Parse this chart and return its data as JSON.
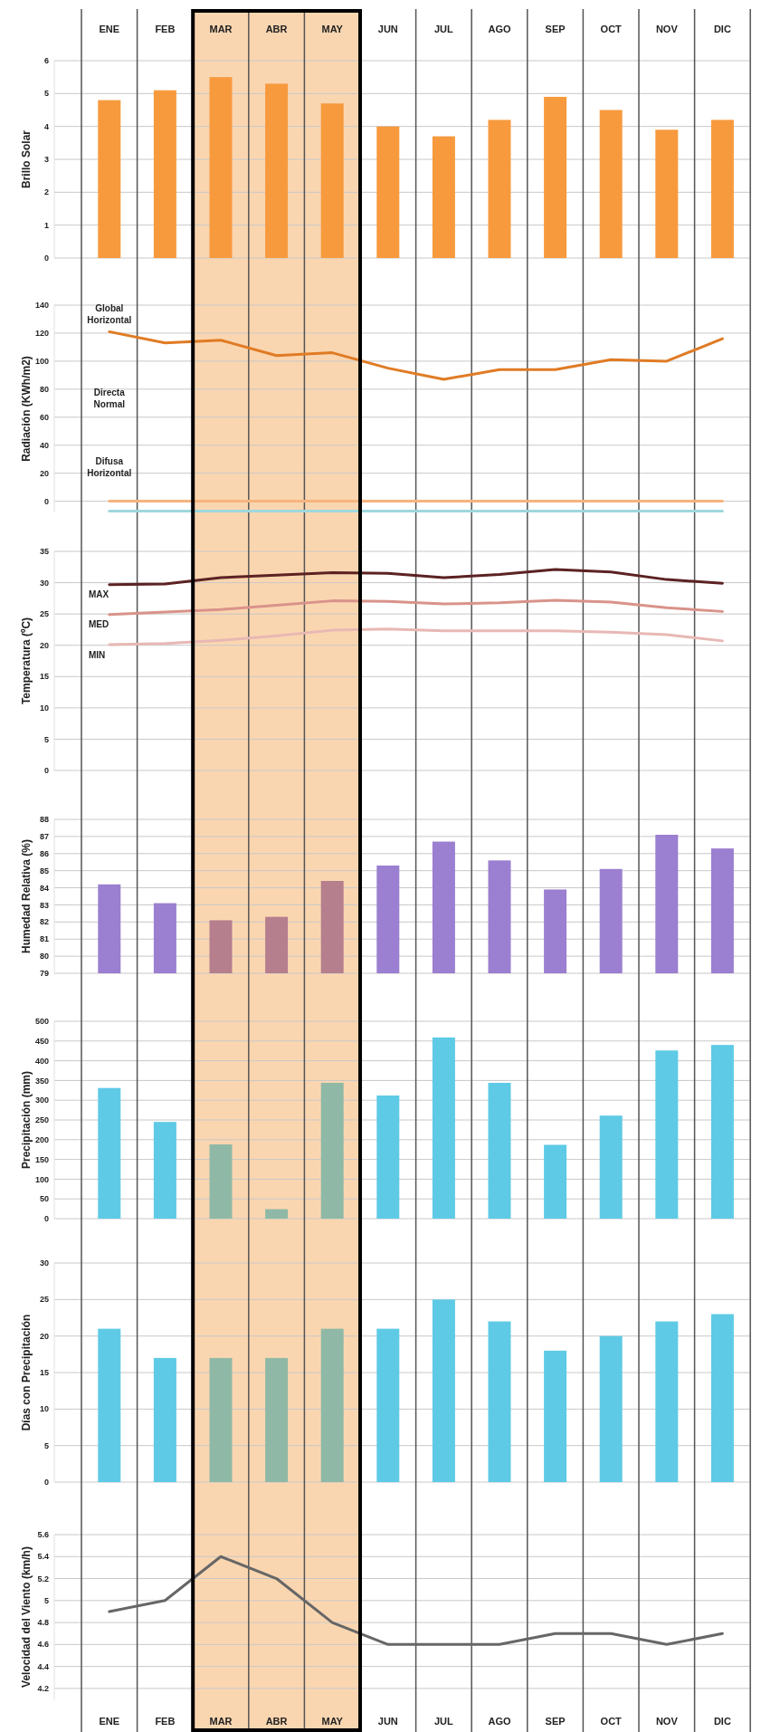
{
  "chart_data": [
    {
      "type": "bar",
      "ylabel": "Brillo Solar",
      "categories": [
        "ENE",
        "FEB",
        "MAR",
        "ABR",
        "MAY",
        "JUN",
        "JUL",
        "AGO",
        "SEP",
        "OCT",
        "NOV",
        "DIC"
      ],
      "values": [
        4.8,
        5.1,
        5.5,
        5.3,
        4.7,
        4.0,
        3.7,
        4.2,
        4.9,
        4.5,
        3.9,
        4.2
      ],
      "color": "#f79a3e",
      "ylim": [
        0,
        6
      ],
      "yticks": [
        0,
        1,
        2,
        3,
        4,
        5,
        6
      ],
      "grid": true,
      "bands": [
        {
          "axis": "x",
          "from": "MAR",
          "to": "MAY",
          "color": "#fad6b0"
        }
      ]
    },
    {
      "type": "line",
      "ylabel": "Radiación (KWh/m2)",
      "categories": [
        "ENE",
        "FEB",
        "MAR",
        "ABR",
        "MAY",
        "JUN",
        "JUL",
        "AGO",
        "SEP",
        "OCT",
        "NOV",
        "DIC"
      ],
      "series": [
        {
          "name": "Global Horizontal",
          "color": "#e07b24",
          "values": [
            121,
            113,
            115,
            104,
            106,
            95,
            87,
            94,
            94,
            101,
            100,
            116
          ]
        },
        {
          "color": "#f5b47e",
          "values": [
            0,
            0,
            0,
            0,
            0,
            0,
            0,
            0,
            0,
            0,
            0,
            0
          ]
        },
        {
          "color": "#9ed8dc",
          "values": [
            -7,
            -7,
            -7,
            -7,
            -7,
            -7,
            -7,
            -7,
            -7,
            -7,
            -7,
            -7
          ]
        }
      ],
      "ylim": [
        -8,
        140
      ],
      "yticks": [
        0,
        20,
        40,
        60,
        80,
        100,
        120,
        140
      ],
      "grid": true,
      "tick_labels": "y",
      "annotations": [
        "Directa Normal",
        "Difusa Horizontal"
      ],
      "bands": [
        {
          "axis": "x",
          "from": "MAR",
          "to": "MAY",
          "color": "#fad6b0"
        }
      ]
    },
    {
      "type": "line",
      "ylabel": "Temperatura (ºC)",
      "categories": [
        "ENE",
        "FEB",
        "MAR",
        "ABR",
        "MAY",
        "JUN",
        "JUL",
        "AGO",
        "SEP",
        "OCT",
        "NOV",
        "DIC"
      ],
      "series": [
        {
          "name": "MAX",
          "color": "#5c2222",
          "values": [
            29.7,
            29.8,
            30.8,
            31.2,
            31.6,
            31.5,
            30.8,
            31.3,
            32.1,
            31.7,
            30.5,
            29.9
          ]
        },
        {
          "name": "MED",
          "color": "#d9938a",
          "values": [
            24.9,
            25.3,
            25.7,
            26.4,
            27.1,
            27.0,
            26.6,
            26.8,
            27.2,
            26.9,
            26.0,
            25.4
          ]
        },
        {
          "name": "MIN",
          "color": "#e8b8b4",
          "values": [
            20.1,
            20.3,
            20.8,
            21.5,
            22.4,
            22.6,
            22.3,
            22.3,
            22.3,
            22.1,
            21.7,
            20.7
          ]
        }
      ],
      "ylim": [
        0,
        35
      ],
      "yticks": [
        0,
        5,
        10,
        15,
        20,
        25,
        30,
        35
      ],
      "grid": true,
      "tick_labels": "y",
      "bands": [
        {
          "axis": "x",
          "from": "MAR",
          "to": "MAY",
          "color": "#fad6b0"
        }
      ]
    },
    {
      "type": "bar",
      "ylabel": "Humedad Relativa (%)",
      "categories": [
        "ENE",
        "FEB",
        "MAR",
        "ABR",
        "MAY",
        "JUN",
        "JUL",
        "AGO",
        "SEP",
        "OCT",
        "NOV",
        "DIC"
      ],
      "values": [
        84.2,
        83.1,
        82.1,
        82.3,
        84.4,
        85.3,
        86.7,
        85.6,
        83.9,
        85.1,
        87.1,
        86.3
      ],
      "colors": [
        "#9b7fd0",
        "#9b7fd0",
        "#b57f8e",
        "#b57f8e",
        "#b57f8e",
        "#9b7fd0",
        "#9b7fd0",
        "#9b7fd0",
        "#9b7fd0",
        "#9b7fd0",
        "#9b7fd0",
        "#9b7fd0"
      ],
      "ylim": [
        79,
        88
      ],
      "yticks": [
        79,
        80,
        81,
        82,
        83,
        84,
        85,
        86,
        87,
        88
      ],
      "grid": true,
      "tick_labels": "y",
      "bands": [
        {
          "axis": "x",
          "from": "MAR",
          "to": "MAY",
          "color": "#fad6b0"
        }
      ]
    },
    {
      "type": "bar",
      "ylabel": "Precipitación (mm)",
      "categories": [
        "ENE",
        "FEB",
        "MAR",
        "ABR",
        "MAY",
        "JUN",
        "JUL",
        "AGO",
        "SEP",
        "OCT",
        "NOV",
        "DIC"
      ],
      "values": [
        331,
        245,
        188,
        24,
        344,
        312,
        459,
        344,
        187,
        261,
        426,
        440
      ],
      "colors": [
        "#5ecae6",
        "#5ecae6",
        "#8fb9a6",
        "#8fb9a6",
        "#8fb9a6",
        "#5ecae6",
        "#5ecae6",
        "#5ecae6",
        "#5ecae6",
        "#5ecae6",
        "#5ecae6",
        "#5ecae6"
      ],
      "ylim": [
        0,
        500
      ],
      "yticks": [
        0,
        50,
        100,
        150,
        200,
        250,
        300,
        350,
        400,
        450,
        500
      ],
      "grid": true,
      "tick_labels": "y",
      "bands": [
        {
          "axis": "x",
          "from": "MAR",
          "to": "MAY",
          "color": "#fad6b0"
        }
      ]
    },
    {
      "type": "bar",
      "ylabel": "Días con Precipitación",
      "categories": [
        "ENE",
        "FEB",
        "MAR",
        "ABR",
        "MAY",
        "JUN",
        "JUL",
        "AGO",
        "SEP",
        "OCT",
        "NOV",
        "DIC"
      ],
      "values": [
        21,
        17,
        17,
        17,
        21,
        21,
        25,
        22,
        18,
        20,
        22,
        23
      ],
      "colors": [
        "#5ecae6",
        "#5ecae6",
        "#8fb9a6",
        "#8fb9a6",
        "#8fb9a6",
        "#5ecae6",
        "#5ecae6",
        "#5ecae6",
        "#5ecae6",
        "#5ecae6",
        "#5ecae6",
        "#5ecae6"
      ],
      "ylim": [
        0,
        30
      ],
      "yticks": [
        0,
        5,
        10,
        15,
        20,
        25,
        30
      ],
      "grid": true,
      "tick_labels": "y",
      "bands": [
        {
          "axis": "x",
          "from": "MAR",
          "to": "MAY",
          "color": "#fad6b0"
        }
      ]
    },
    {
      "type": "line",
      "ylabel": "Velocidad del Viento (km/h)",
      "categories": [
        "ENE",
        "FEB",
        "MAR",
        "ABR",
        "MAY",
        "JUN",
        "JUL",
        "AGO",
        "SEP",
        "OCT",
        "NOV",
        "DIC"
      ],
      "series": [
        {
          "color": "#666666",
          "values": [
            4.9,
            5.0,
            5.4,
            5.2,
            4.8,
            4.6,
            4.6,
            4.6,
            4.7,
            4.7,
            4.6,
            4.7
          ]
        }
      ],
      "ylim": [
        4.1,
        5.6
      ],
      "yticks": [
        4.2,
        4.4,
        4.6,
        4.8,
        5,
        5.2,
        5.4,
        5.6
      ],
      "grid": true,
      "bands": [
        {
          "axis": "x",
          "from": "MAR",
          "to": "MAY",
          "color": "#fad6b0"
        }
      ]
    }
  ]
}
